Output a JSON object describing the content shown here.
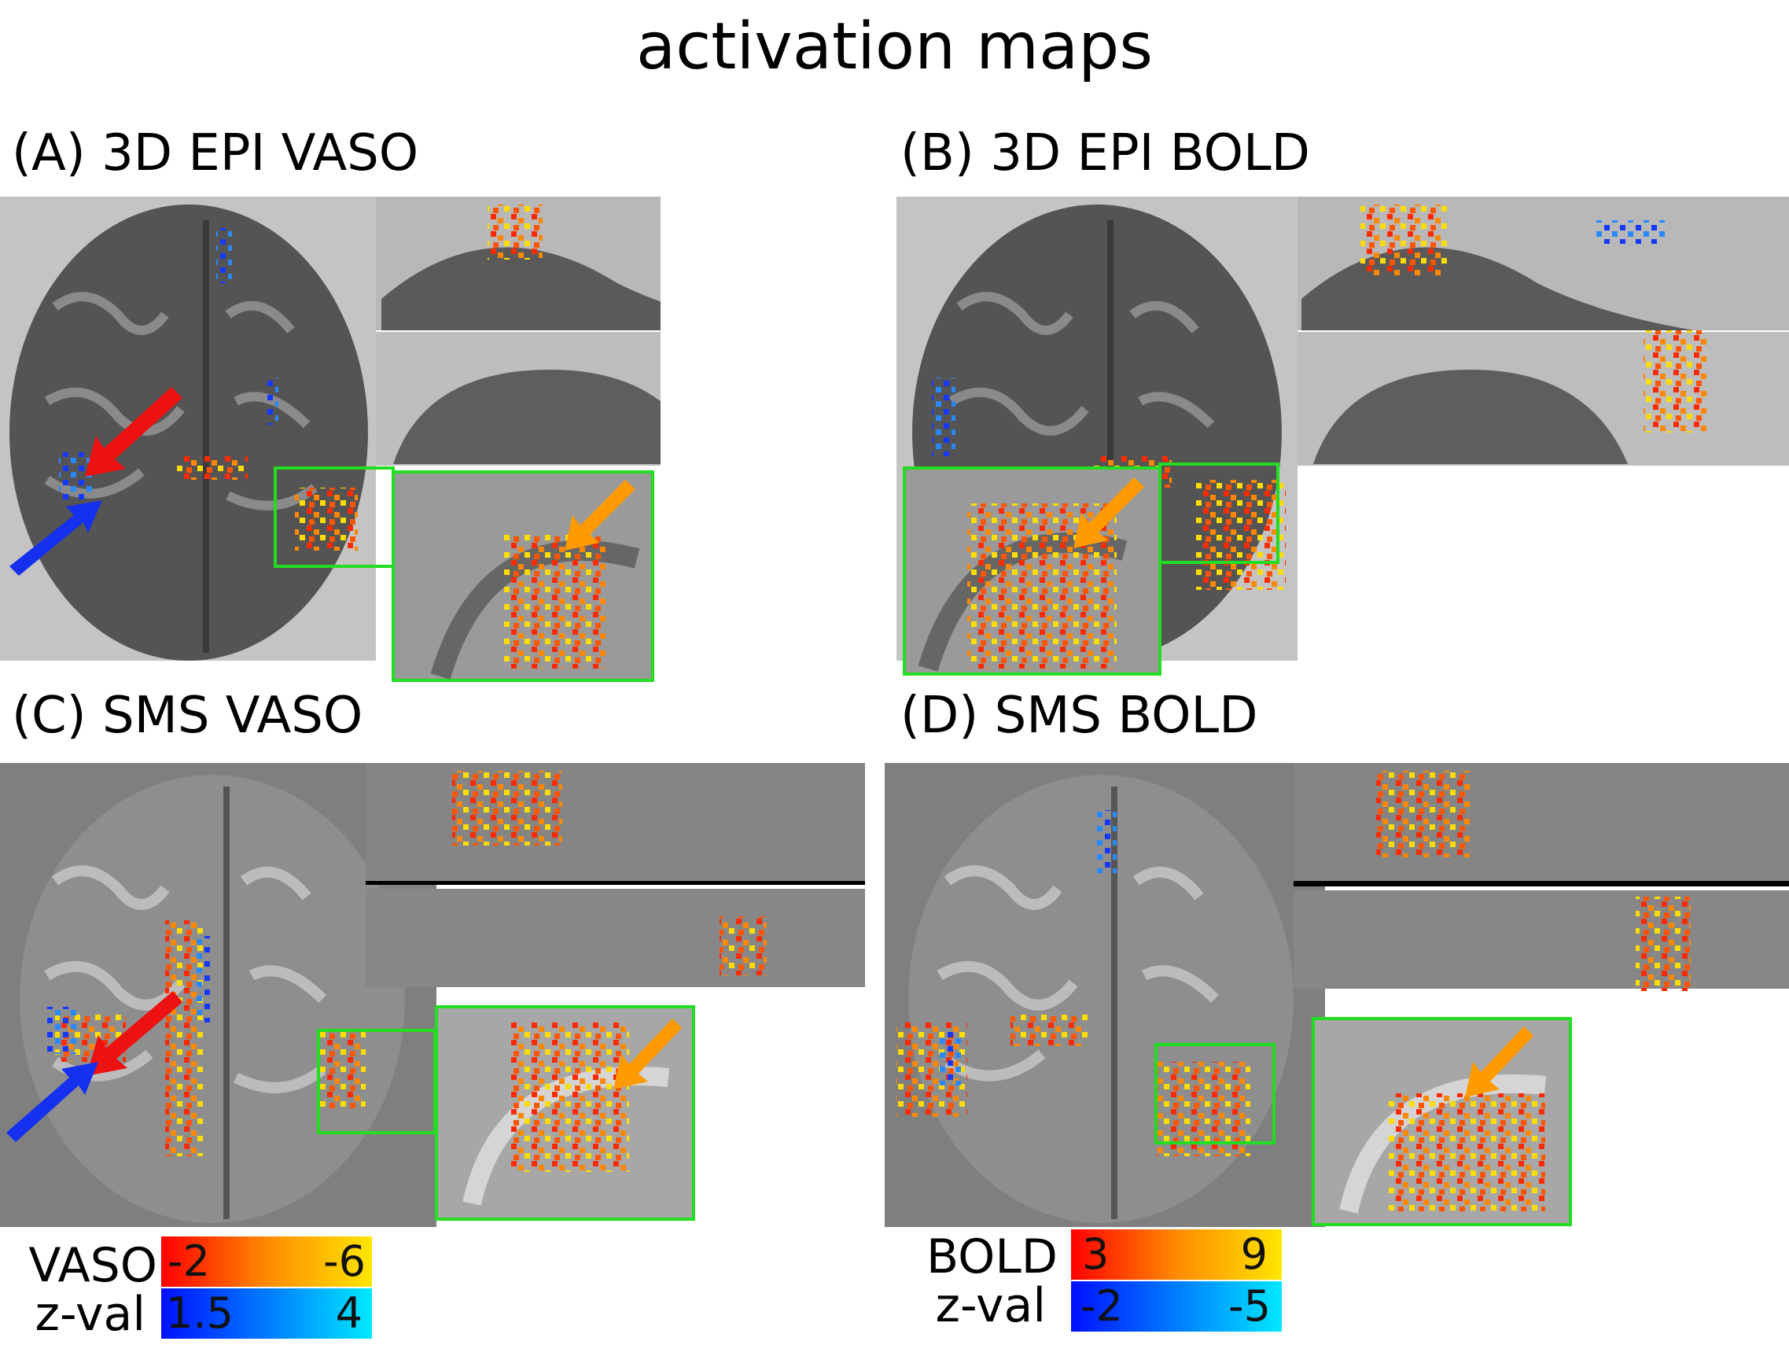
{
  "title": "activation maps",
  "panels": {
    "a": {
      "label": "(A) 3D EPI VASO"
    },
    "b": {
      "label": "(B) 3D EPI BOLD"
    },
    "c": {
      "label": "(C) SMS VASO"
    },
    "d": {
      "label": "(D) SMS BOLD"
    }
  },
  "legend_vaso": {
    "line1": "VASO",
    "line2": "z-val",
    "pos_min": "-2",
    "pos_max": "-6",
    "neg_min": "1.5",
    "neg_max": "4"
  },
  "legend_bold": {
    "line1": "BOLD",
    "line2": "z-val",
    "pos_min": "3",
    "pos_max": "9",
    "neg_min": "-2",
    "neg_max": "-5"
  },
  "colors": {
    "positive_scale": [
      "#ff0000",
      "#ff8a00",
      "#ffe600"
    ],
    "negative_scale": [
      "#0010ff",
      "#00e8ff"
    ],
    "roi_box": "#22dd22",
    "arrow_red": "#ee1111",
    "arrow_blue": "#1530ee",
    "arrow_orange": "#ff9a00"
  }
}
